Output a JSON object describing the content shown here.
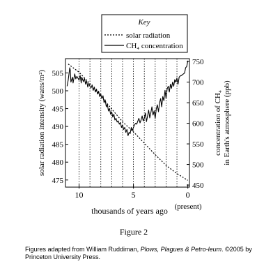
{
  "chart_data": {
    "type": "line",
    "title": "",
    "xlabel": "thousands of years ago",
    "x_ticks": [
      "10",
      "5",
      "0"
    ],
    "x_tick_note": "(present)",
    "xlim": [
      11.25,
      -0.15
    ],
    "ylabel_left": "solar radiation intensity (watts/m²)",
    "ylim_left": [
      473,
      509
    ],
    "y_ticks_left": [
      475,
      480,
      485,
      490,
      495,
      500,
      505
    ],
    "ylabel_right_line1": "concentration of CH₄",
    "ylabel_right_line2": "in Earth's atmosphere (ppb)",
    "ylim_right": [
      445,
      757
    ],
    "y_ticks_right": [
      450,
      500,
      550,
      600,
      650,
      700,
      750
    ],
    "vertical_dotted_lines_x": [
      10,
      9,
      8,
      7,
      6,
      5,
      4,
      3,
      2,
      1
    ],
    "legend": {
      "title": "Key",
      "entries": [
        {
          "label": "solar radiation",
          "style": "dotted"
        },
        {
          "label": "CH₄ concentration",
          "style": "solid"
        }
      ]
    },
    "series": [
      {
        "name": "solar radiation",
        "axis": "left",
        "style": "dotted",
        "x": [
          11,
          10,
          9,
          8,
          7,
          6,
          5,
          4,
          3,
          2,
          1,
          0
        ],
        "values": [
          507.5,
          505.2,
          502.0,
          498.5,
          494.9,
          491.3,
          488.5,
          485.3,
          482.1,
          479.1,
          476.8,
          474.9
        ]
      },
      {
        "name": "CH₄ concentration",
        "axis": "right",
        "style": "solid",
        "x": [
          11.1,
          11.0,
          10.85,
          10.8,
          10.75,
          10.6,
          10.55,
          10.4,
          10.3,
          10.2,
          10.0,
          9.9,
          9.8,
          9.75,
          9.6,
          9.5,
          9.4,
          9.3,
          9.2,
          9.1,
          9.0,
          8.9,
          8.8,
          8.7,
          8.6,
          8.5,
          8.4,
          8.3,
          8.2,
          8.1,
          8.0,
          7.9,
          7.8,
          7.7,
          7.6,
          7.5,
          7.4,
          7.3,
          7.2,
          7.1,
          7.0,
          6.9,
          6.8,
          6.7,
          6.6,
          6.5,
          6.4,
          6.3,
          6.2,
          6.1,
          6.0,
          5.9,
          5.8,
          5.7,
          5.6,
          5.5,
          5.4,
          5.3,
          5.2,
          5.1,
          5.0,
          4.9,
          4.8,
          4.7,
          4.6,
          4.5,
          4.4,
          4.3,
          4.2,
          4.1,
          4.0,
          3.9,
          3.8,
          3.7,
          3.6,
          3.5,
          3.4,
          3.3,
          3.2,
          3.1,
          3.0,
          2.9,
          2.8,
          2.7,
          2.6,
          2.5,
          2.4,
          2.3,
          2.2,
          2.1,
          2.0,
          1.9,
          1.8,
          1.7,
          1.6,
          1.5,
          1.4,
          1.3,
          1.2,
          1.1,
          1.0,
          0.9,
          0.8,
          0.7,
          0.6,
          0.5,
          0.4,
          0.3,
          0.2,
          0.1,
          0.0
        ],
        "values": [
          690,
          705,
          735,
          728,
          700,
          712,
          698,
          720,
          708,
          714,
          705,
          716,
          698,
          712,
          701,
          709,
          695,
          703,
          688,
          697,
          690,
          686,
          693,
          680,
          688,
          676,
          683,
          671,
          678,
          665,
          671,
          660,
          667,
          650,
          657,
          640,
          646,
          630,
          636,
          622,
          628,
          615,
          622,
          608,
          612,
          603,
          606,
          598,
          602,
          590,
          596,
          585,
          590,
          578,
          585,
          570,
          578,
          575,
          590,
          582,
          590,
          596,
          600,
          598,
          605,
          612,
          601,
          608,
          618,
          606,
          612,
          625,
          604,
          618,
          632,
          613,
          626,
          640,
          620,
          630,
          612,
          635,
          645,
          628,
          650,
          660,
          640,
          665,
          655,
          680,
          660,
          684,
          690,
          676,
          695,
          685,
          700,
          690,
          706,
          700,
          710,
          695,
          712,
          715,
          716,
          718,
          720,
          722,
          735,
          738,
          752
        ]
      }
    ]
  },
  "figure_label": "Figure 2",
  "caption": {
    "prefix": "Figures adapted from William Ruddiman, ",
    "title": "Plows, Plagues & Petro-\nleum",
    "suffix": ". ©2005 by Princeton University Press."
  }
}
